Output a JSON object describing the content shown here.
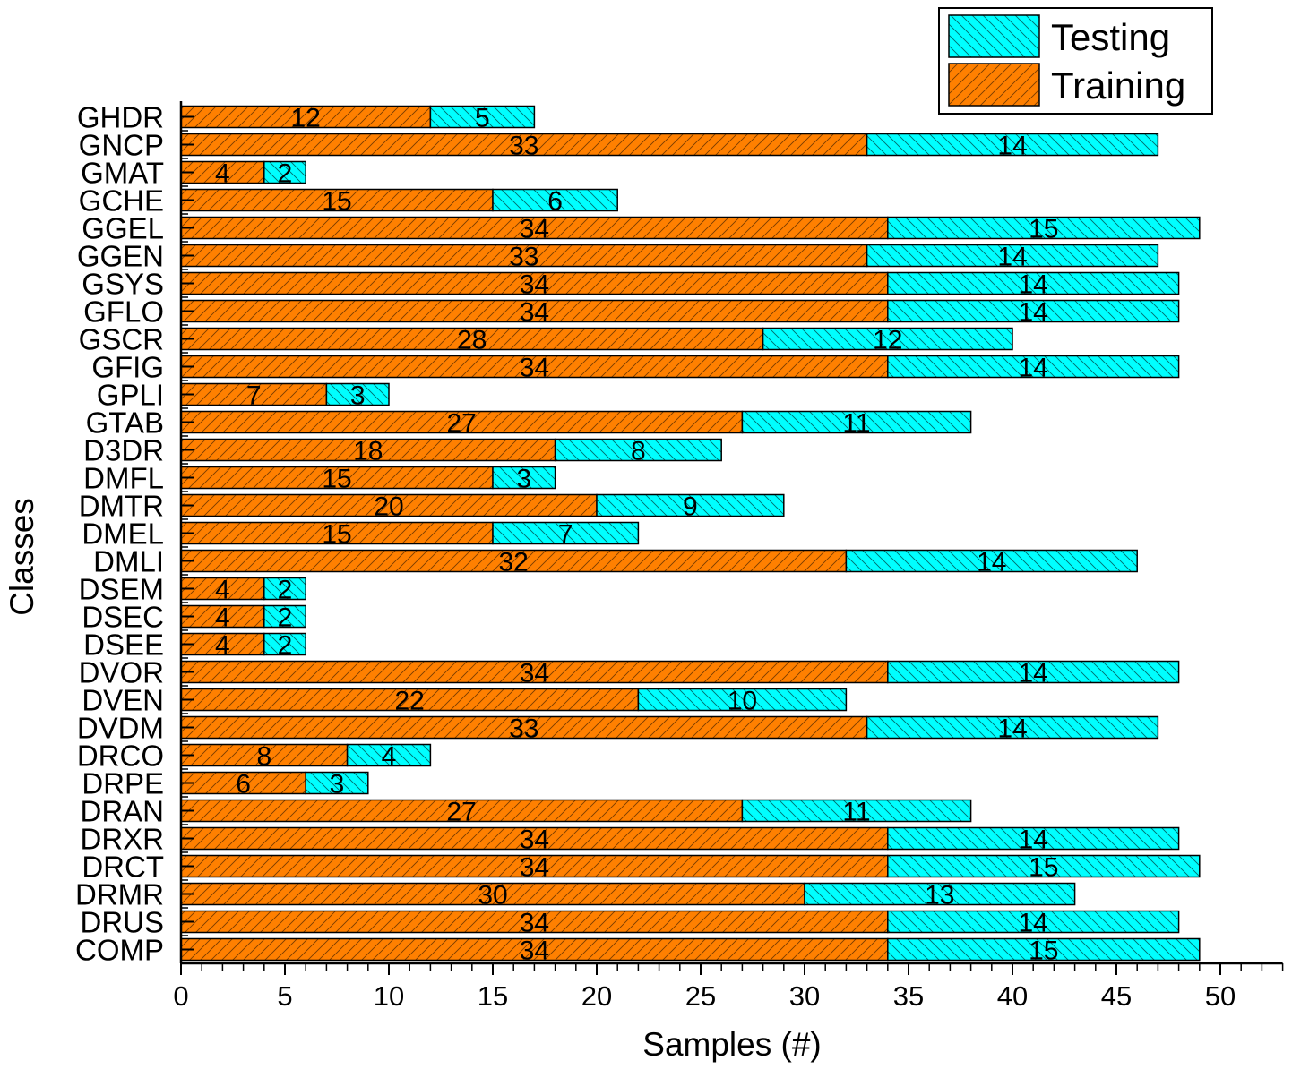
{
  "chart_data": {
    "type": "bar",
    "orientation": "horizontal",
    "stacked": true,
    "xlabel": "Samples (#)",
    "ylabel": "Classes",
    "xlim": [
      0,
      53
    ],
    "xticks": [
      0,
      5,
      10,
      15,
      20,
      25,
      30,
      35,
      40,
      45,
      50
    ],
    "categories": [
      "GHDR",
      "GNCP",
      "GMAT",
      "GCHE",
      "GGEL",
      "GGEN",
      "GSYS",
      "GFLO",
      "GSCR",
      "GFIG",
      "GPLI",
      "GTAB",
      "D3DR",
      "DMFL",
      "DMTR",
      "DMEL",
      "DMLI",
      "DSEM",
      "DSEC",
      "DSEE",
      "DVOR",
      "DVEN",
      "DVDM",
      "DRCO",
      "DRPE",
      "DRAN",
      "DRXR",
      "DRCT",
      "DRMR",
      "DRUS",
      "COMP"
    ],
    "series": [
      {
        "name": "Training",
        "color": "#FF8000",
        "values": [
          12,
          33,
          4,
          15,
          34,
          33,
          34,
          34,
          28,
          34,
          7,
          27,
          18,
          15,
          20,
          15,
          32,
          4,
          4,
          4,
          34,
          22,
          33,
          8,
          6,
          27,
          34,
          34,
          30,
          34,
          34
        ]
      },
      {
        "name": "Testing",
        "color": "#00FFFF",
        "values": [
          5,
          14,
          2,
          6,
          15,
          14,
          14,
          14,
          12,
          14,
          3,
          11,
          8,
          3,
          9,
          7,
          14,
          2,
          2,
          2,
          14,
          10,
          14,
          4,
          3,
          11,
          14,
          15,
          13,
          14,
          15
        ]
      }
    ],
    "legend": {
      "position": "top-right",
      "entries": [
        "Testing",
        "Training"
      ]
    }
  }
}
